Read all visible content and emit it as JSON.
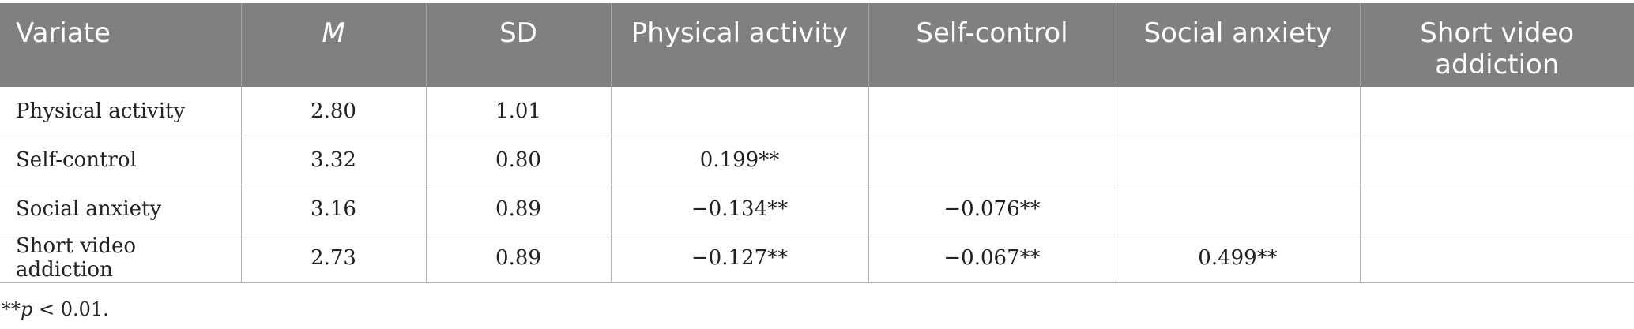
{
  "table": {
    "headers": [
      "Variate",
      "M",
      "SD",
      "Physical activity",
      "Self-control",
      "Social anxiety",
      "Short video addiction"
    ],
    "rows": [
      [
        "Physical activity",
        "2.80",
        "1.01",
        "",
        "",
        "",
        ""
      ],
      [
        "Self-control",
        "3.32",
        "0.80",
        "0.199**",
        "",
        "",
        ""
      ],
      [
        "Social anxiety",
        "3.16",
        "0.89",
        "−0.134**",
        "−0.076**",
        "",
        ""
      ],
      [
        "Short video addiction",
        "2.73",
        "0.89",
        "−0.127**",
        "−0.067**",
        "0.499**",
        ""
      ]
    ]
  },
  "footnote": {
    "stars": "**",
    "p": "p",
    "rest": " < 0.01."
  },
  "colors": {
    "header_bg": "#808080",
    "header_text": "#ffffff",
    "grid": "#b3b3b3"
  }
}
